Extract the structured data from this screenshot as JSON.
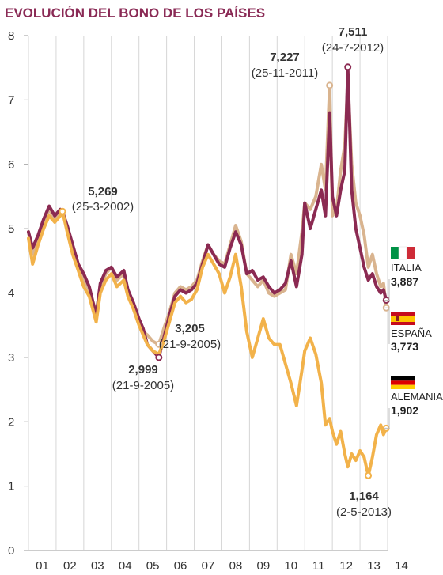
{
  "chart_data": {
    "type": "line",
    "title": "EVOLUCIÓN DEL BONO DE LOS PAÍSES",
    "xlabel": "",
    "ylabel": "",
    "x_ticks": [
      "01",
      "02",
      "03",
      "04",
      "05",
      "06",
      "07",
      "08",
      "09",
      "10",
      "11",
      "12",
      "13",
      "14"
    ],
    "y_ticks": [
      "0",
      "1",
      "2",
      "3",
      "4",
      "5",
      "6",
      "7",
      "8"
    ],
    "ylim": [
      0,
      8
    ],
    "xlim": [
      2001.0,
      2014.0
    ],
    "grid": "vertical",
    "legend_position": "right",
    "series": [
      {
        "name": "ESPAÑA",
        "color": "#d9b48f",
        "flag": "spain-flag",
        "last_value": "3,773",
        "points": [
          [
            2001.0,
            4.95
          ],
          [
            2001.15,
            4.6
          ],
          [
            2001.35,
            4.85
          ],
          [
            2001.55,
            5.1
          ],
          [
            2001.75,
            5.3
          ],
          [
            2001.95,
            5.15
          ],
          [
            2002.15,
            5.25
          ],
          [
            2002.23,
            5.27
          ],
          [
            2002.4,
            5.0
          ],
          [
            2002.6,
            4.7
          ],
          [
            2002.8,
            4.4
          ],
          [
            2003.0,
            4.2
          ],
          [
            2003.2,
            4.05
          ],
          [
            2003.45,
            3.7
          ],
          [
            2003.6,
            4.1
          ],
          [
            2003.8,
            4.3
          ],
          [
            2004.0,
            4.4
          ],
          [
            2004.2,
            4.2
          ],
          [
            2004.45,
            4.3
          ],
          [
            2004.6,
            4.0
          ],
          [
            2004.8,
            3.8
          ],
          [
            2005.0,
            3.55
          ],
          [
            2005.15,
            3.4
          ],
          [
            2005.3,
            3.35
          ],
          [
            2005.5,
            3.25
          ],
          [
            2005.72,
            3.2
          ],
          [
            2005.9,
            3.45
          ],
          [
            2006.1,
            3.7
          ],
          [
            2006.3,
            4.0
          ],
          [
            2006.5,
            4.1
          ],
          [
            2006.7,
            4.05
          ],
          [
            2006.9,
            4.1
          ],
          [
            2007.1,
            4.2
          ],
          [
            2007.3,
            4.5
          ],
          [
            2007.5,
            4.75
          ],
          [
            2007.7,
            4.6
          ],
          [
            2007.9,
            4.5
          ],
          [
            2008.1,
            4.45
          ],
          [
            2008.3,
            4.75
          ],
          [
            2008.5,
            5.05
          ],
          [
            2008.7,
            4.8
          ],
          [
            2008.9,
            4.3
          ],
          [
            2009.1,
            4.2
          ],
          [
            2009.3,
            4.1
          ],
          [
            2009.5,
            4.2
          ],
          [
            2009.7,
            4.0
          ],
          [
            2009.9,
            3.95
          ],
          [
            2010.1,
            4.0
          ],
          [
            2010.3,
            4.05
          ],
          [
            2010.5,
            4.6
          ],
          [
            2010.7,
            4.3
          ],
          [
            2010.9,
            4.95
          ],
          [
            2011.0,
            5.4
          ],
          [
            2011.2,
            5.3
          ],
          [
            2011.4,
            5.5
          ],
          [
            2011.6,
            6.0
          ],
          [
            2011.75,
            5.6
          ],
          [
            2011.9,
            7.23
          ],
          [
            2012.0,
            5.2
          ],
          [
            2012.15,
            5.3
          ],
          [
            2012.3,
            5.9
          ],
          [
            2012.45,
            6.3
          ],
          [
            2012.56,
            7.3
          ],
          [
            2012.7,
            6.0
          ],
          [
            2012.85,
            5.4
          ],
          [
            2013.0,
            5.2
          ],
          [
            2013.15,
            4.9
          ],
          [
            2013.3,
            4.4
          ],
          [
            2013.45,
            4.6
          ],
          [
            2013.6,
            4.3
          ],
          [
            2013.75,
            4.1
          ],
          [
            2013.85,
            4.15
          ],
          [
            2013.95,
            3.77
          ]
        ]
      },
      {
        "name": "ITALIA",
        "color": "#8b2a52",
        "flag": "italy-flag",
        "last_value": "3,887",
        "points": [
          [
            2001.0,
            4.95
          ],
          [
            2001.15,
            4.7
          ],
          [
            2001.35,
            4.9
          ],
          [
            2001.55,
            5.15
          ],
          [
            2001.75,
            5.35
          ],
          [
            2001.95,
            5.2
          ],
          [
            2002.15,
            5.3
          ],
          [
            2002.23,
            5.27
          ],
          [
            2002.4,
            5.05
          ],
          [
            2002.6,
            4.75
          ],
          [
            2002.8,
            4.45
          ],
          [
            2003.0,
            4.3
          ],
          [
            2003.2,
            4.1
          ],
          [
            2003.45,
            3.65
          ],
          [
            2003.6,
            4.15
          ],
          [
            2003.8,
            4.35
          ],
          [
            2004.0,
            4.4
          ],
          [
            2004.2,
            4.25
          ],
          [
            2004.45,
            4.35
          ],
          [
            2004.6,
            4.05
          ],
          [
            2004.8,
            3.85
          ],
          [
            2005.0,
            3.6
          ],
          [
            2005.15,
            3.45
          ],
          [
            2005.3,
            3.2
          ],
          [
            2005.5,
            3.1
          ],
          [
            2005.72,
            3.0
          ],
          [
            2005.9,
            3.3
          ],
          [
            2006.1,
            3.65
          ],
          [
            2006.3,
            3.95
          ],
          [
            2006.5,
            4.05
          ],
          [
            2006.7,
            4.0
          ],
          [
            2006.9,
            4.05
          ],
          [
            2007.1,
            4.15
          ],
          [
            2007.3,
            4.45
          ],
          [
            2007.5,
            4.75
          ],
          [
            2007.7,
            4.6
          ],
          [
            2007.9,
            4.45
          ],
          [
            2008.1,
            4.4
          ],
          [
            2008.3,
            4.7
          ],
          [
            2008.5,
            4.95
          ],
          [
            2008.7,
            4.75
          ],
          [
            2008.9,
            4.3
          ],
          [
            2009.1,
            4.35
          ],
          [
            2009.3,
            4.2
          ],
          [
            2009.5,
            4.25
          ],
          [
            2009.7,
            4.1
          ],
          [
            2009.9,
            4.0
          ],
          [
            2010.1,
            4.05
          ],
          [
            2010.3,
            4.15
          ],
          [
            2010.5,
            4.5
          ],
          [
            2010.7,
            4.1
          ],
          [
            2010.9,
            4.6
          ],
          [
            2011.0,
            5.4
          ],
          [
            2011.2,
            5.0
          ],
          [
            2011.4,
            5.3
          ],
          [
            2011.6,
            5.6
          ],
          [
            2011.75,
            5.2
          ],
          [
            2011.9,
            6.8
          ],
          [
            2012.0,
            5.5
          ],
          [
            2012.15,
            5.2
          ],
          [
            2012.3,
            5.6
          ],
          [
            2012.45,
            5.9
          ],
          [
            2012.56,
            7.51
          ],
          [
            2012.7,
            5.6
          ],
          [
            2012.85,
            5.0
          ],
          [
            2013.0,
            4.7
          ],
          [
            2013.15,
            4.4
          ],
          [
            2013.3,
            4.2
          ],
          [
            2013.45,
            4.3
          ],
          [
            2013.6,
            4.1
          ],
          [
            2013.75,
            4.0
          ],
          [
            2013.85,
            4.05
          ],
          [
            2013.95,
            3.89
          ]
        ]
      },
      {
        "name": "ALEMANIA",
        "color": "#f2b24a",
        "flag": "germany-flag",
        "last_value": "1,902",
        "points": [
          [
            2001.0,
            4.85
          ],
          [
            2001.15,
            4.45
          ],
          [
            2001.35,
            4.75
          ],
          [
            2001.55,
            5.0
          ],
          [
            2001.75,
            5.2
          ],
          [
            2001.95,
            5.1
          ],
          [
            2002.15,
            5.2
          ],
          [
            2002.23,
            5.27
          ],
          [
            2002.4,
            4.95
          ],
          [
            2002.6,
            4.6
          ],
          [
            2002.8,
            4.35
          ],
          [
            2003.0,
            4.1
          ],
          [
            2003.2,
            3.95
          ],
          [
            2003.45,
            3.55
          ],
          [
            2003.6,
            4.0
          ],
          [
            2003.8,
            4.2
          ],
          [
            2004.0,
            4.3
          ],
          [
            2004.2,
            4.1
          ],
          [
            2004.45,
            4.2
          ],
          [
            2004.6,
            3.95
          ],
          [
            2004.8,
            3.75
          ],
          [
            2005.0,
            3.5
          ],
          [
            2005.15,
            3.35
          ],
          [
            2005.3,
            3.2
          ],
          [
            2005.5,
            3.1
          ],
          [
            2005.72,
            3.05
          ],
          [
            2005.9,
            3.25
          ],
          [
            2006.1,
            3.55
          ],
          [
            2006.3,
            3.85
          ],
          [
            2006.5,
            3.95
          ],
          [
            2006.7,
            3.85
          ],
          [
            2006.9,
            3.9
          ],
          [
            2007.1,
            4.05
          ],
          [
            2007.3,
            4.4
          ],
          [
            2007.5,
            4.6
          ],
          [
            2007.7,
            4.45
          ],
          [
            2007.9,
            4.3
          ],
          [
            2008.1,
            4.0
          ],
          [
            2008.3,
            4.25
          ],
          [
            2008.5,
            4.6
          ],
          [
            2008.7,
            4.1
          ],
          [
            2008.9,
            3.4
          ],
          [
            2009.1,
            3.0
          ],
          [
            2009.3,
            3.3
          ],
          [
            2009.5,
            3.6
          ],
          [
            2009.7,
            3.3
          ],
          [
            2009.9,
            3.2
          ],
          [
            2010.1,
            3.2
          ],
          [
            2010.3,
            2.9
          ],
          [
            2010.5,
            2.6
          ],
          [
            2010.7,
            2.25
          ],
          [
            2010.9,
            2.8
          ],
          [
            2011.0,
            3.1
          ],
          [
            2011.2,
            3.3
          ],
          [
            2011.4,
            3.05
          ],
          [
            2011.6,
            2.6
          ],
          [
            2011.75,
            1.95
          ],
          [
            2011.9,
            2.05
          ],
          [
            2012.0,
            1.85
          ],
          [
            2012.15,
            1.65
          ],
          [
            2012.3,
            1.85
          ],
          [
            2012.45,
            1.5
          ],
          [
            2012.56,
            1.3
          ],
          [
            2012.7,
            1.5
          ],
          [
            2012.85,
            1.4
          ],
          [
            2013.0,
            1.55
          ],
          [
            2013.15,
            1.45
          ],
          [
            2013.3,
            1.16
          ],
          [
            2013.45,
            1.45
          ],
          [
            2013.6,
            1.8
          ],
          [
            2013.75,
            1.95
          ],
          [
            2013.85,
            1.8
          ],
          [
            2013.95,
            1.9
          ]
        ]
      }
    ],
    "annotations": [
      {
        "value": "5,269",
        "date": "(25-3-2002)",
        "x": 2002.23,
        "y": 5.269,
        "marker_color": "#f2b24a"
      },
      {
        "value": "2,999",
        "date": "(21-9-2005)",
        "x": 2005.72,
        "y": 2.999,
        "marker_color": "#8b2a52"
      },
      {
        "value": "3,205",
        "date": "(21-9-2005)",
        "x": 2005.72,
        "y": 3.205,
        "marker_color": "#d9b48f"
      },
      {
        "value": "7,227",
        "date": "(25-11-2011)",
        "x": 2011.9,
        "y": 7.227,
        "marker_color": "#d9b48f"
      },
      {
        "value": "7,511",
        "date": "(24-7-2012)",
        "x": 2012.56,
        "y": 7.511,
        "marker_color": "#8b2a52"
      },
      {
        "value": "1,164",
        "date": "(2-5-2013)",
        "x": 2013.3,
        "y": 1.164,
        "marker_color": "#f2b24a"
      }
    ]
  }
}
